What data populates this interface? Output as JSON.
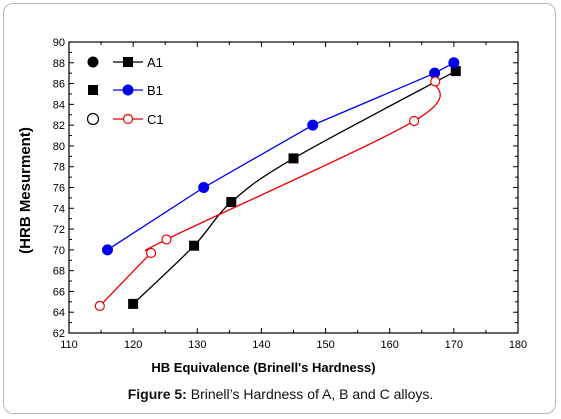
{
  "chart_data": {
    "type": "line",
    "xlabel": "HB Equivalence (Brinell's Hardness)",
    "ylabel": "(HRB Mesurment)",
    "xlim": [
      110,
      180
    ],
    "ylim": [
      62,
      90
    ],
    "xticks": [
      110,
      120,
      130,
      140,
      150,
      160,
      170,
      180
    ],
    "yticks": [
      62,
      64,
      66,
      68,
      70,
      72,
      74,
      76,
      78,
      80,
      82,
      84,
      86,
      88,
      90
    ],
    "grid": false,
    "legend_position": "top-left",
    "series": [
      {
        "name": "A1",
        "color": "#000000",
        "marker": "square-filled",
        "smooth": true,
        "points": [
          [
            120,
            64.8
          ],
          [
            129.5,
            70.4
          ],
          [
            135.3,
            74.6
          ],
          [
            145,
            78.8
          ],
          [
            170.3,
            87.2
          ]
        ]
      },
      {
        "name": "B1",
        "color": "#0000ee",
        "marker": "circle-filled",
        "smooth": false,
        "points": [
          [
            116,
            70
          ],
          [
            131,
            76
          ],
          [
            148,
            82
          ],
          [
            167,
            87
          ],
          [
            170,
            88
          ]
        ]
      },
      {
        "name": "C1",
        "color": "#ee0000",
        "marker": "circle-open",
        "smooth": true,
        "points": [
          [
            114.8,
            64.6
          ],
          [
            122.8,
            69.7
          ],
          [
            125.2,
            71
          ],
          [
            163.8,
            82.4
          ],
          [
            167.1,
            86.2
          ]
        ]
      }
    ],
    "legend_symbols": [
      "circle-filled",
      "square-filled",
      "circle-open"
    ]
  },
  "caption": {
    "label": "Figure 5:",
    "text": " Brinell’s Hardness of A, B and C alloys."
  }
}
